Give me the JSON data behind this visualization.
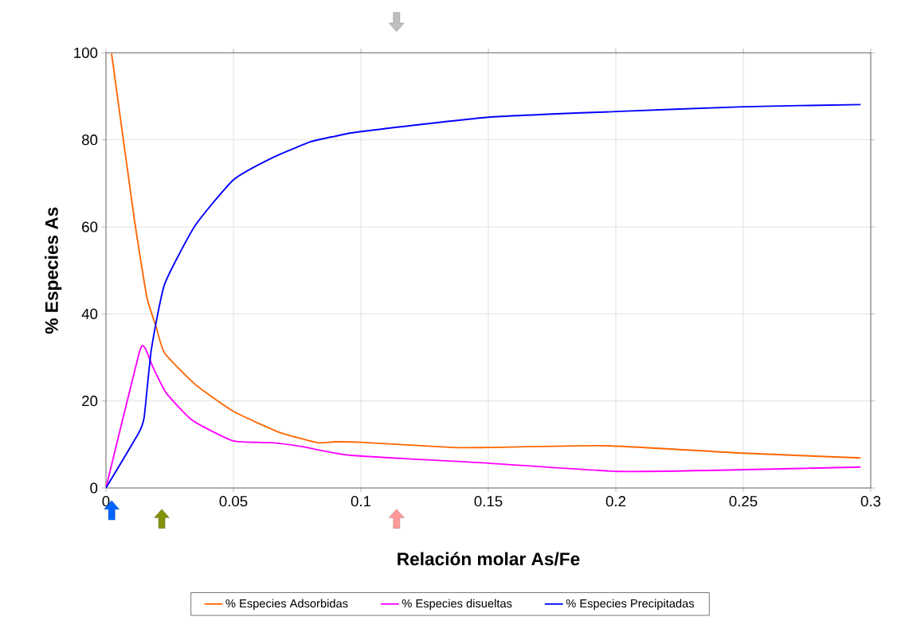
{
  "chart_data": {
    "type": "line",
    "xlabel": "Relación molar As/Fe",
    "ylabel": "% Especies As",
    "xlim": [
      0,
      0.3
    ],
    "ylim": [
      0,
      100
    ],
    "xticks": [
      0,
      0.05,
      0.1,
      0.15,
      0.2,
      0.25,
      0.3
    ],
    "yticks": [
      0,
      20,
      40,
      60,
      80,
      100
    ],
    "grid": true,
    "legend": "bottom",
    "series": [
      {
        "name": "% Especies Adsorbidas",
        "color": "#ff6600",
        "x": [
          0.0022,
          0.011,
          0.016,
          0.0197,
          0.023,
          0.035,
          0.05,
          0.068,
          0.083,
          0.0897,
          0.1,
          0.136,
          0.15,
          0.196,
          0.25,
          0.296
        ],
        "values": [
          99.8,
          62.3,
          44,
          37,
          31,
          23.8,
          17.6,
          12.8,
          10.4,
          10.6,
          10.5,
          9.3,
          9.3,
          9.7,
          8.0,
          6.9
        ]
      },
      {
        "name": "% Especies disueltas",
        "color": "#ff00ff",
        "x": [
          0,
          0.013,
          0.0153,
          0.0184,
          0.0237,
          0.034,
          0.05,
          0.065,
          0.077,
          0.096,
          0.15,
          0.201,
          0.25,
          0.296
        ],
        "values": [
          0,
          31,
          32.2,
          27.8,
          21.8,
          15.5,
          10.8,
          10.4,
          9.5,
          7.5,
          5.7,
          3.8,
          4.2,
          4.8
        ]
      },
      {
        "name": "% Especies Precipitadas",
        "color": "#0000ff",
        "x": [
          0,
          0.013,
          0.015,
          0.0178,
          0.023,
          0.035,
          0.05,
          0.065,
          0.08,
          0.0897,
          0.1,
          0.15,
          0.2,
          0.25,
          0.296
        ],
        "values": [
          0,
          12.8,
          16.3,
          31.8,
          46.8,
          60.3,
          70.8,
          75.8,
          79.5,
          80.8,
          81.9,
          85.2,
          86.5,
          87.6,
          88.1
        ]
      }
    ]
  }
}
